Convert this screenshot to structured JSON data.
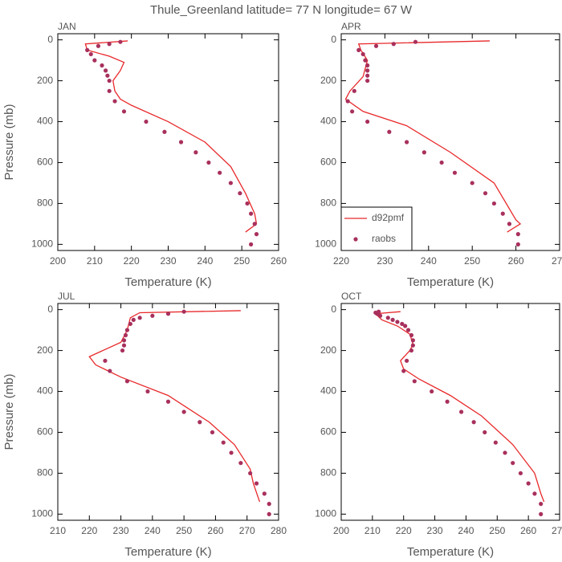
{
  "title": "Thule_Greenland  latitude= 77 N longitude= 67 W",
  "chart_data": [
    {
      "type": "line",
      "title": "JAN",
      "x_label": "Temperature (K)",
      "y_label": "Pressure (mb)",
      "xlim": [
        200,
        260
      ],
      "xticks": [
        200,
        210,
        220,
        230,
        240,
        250,
        260
      ],
      "ylim": [
        1030,
        -30
      ],
      "yticks": [
        0,
        200,
        400,
        600,
        800,
        1000
      ],
      "series": [
        {
          "name": "d92pmf",
          "style": "line",
          "color": "#e8282a",
          "x": [
            219,
            207.5,
            208,
            214,
            218,
            217,
            215,
            215.5,
            217,
            220,
            230,
            240,
            247,
            251,
            253.5,
            254,
            251
          ],
          "values": [
            5,
            20,
            50,
            80,
            110,
            150,
            200,
            250,
            290,
            320,
            400,
            500,
            620,
            750,
            850,
            900,
            940
          ]
        },
        {
          "name": "raobs",
          "style": "points",
          "color": "#a8305c",
          "x": [
            217,
            214,
            211,
            208,
            209,
            210,
            212,
            213,
            213.5,
            214,
            214,
            215.5,
            218,
            224,
            229,
            233.5,
            237.5,
            241,
            244,
            247,
            249.5,
            251.5,
            252.5,
            253.5,
            254,
            252.5
          ],
          "values": [
            10,
            20,
            30,
            50,
            70,
            100,
            125,
            150,
            175,
            200,
            250,
            300,
            350,
            400,
            450,
            500,
            550,
            600,
            650,
            700,
            750,
            800,
            850,
            900,
            950,
            1000
          ]
        }
      ]
    },
    {
      "type": "line",
      "title": "APR",
      "x_label": "Temperature (K)",
      "legend": "lower left",
      "xlim": [
        220,
        270
      ],
      "xticks": [
        220,
        230,
        240,
        250,
        260,
        270
      ],
      "ylim": [
        1030,
        -30
      ],
      "yticks": [
        0,
        200,
        400,
        600,
        800,
        1000
      ],
      "series": [
        {
          "name": "d92pmf",
          "style": "line",
          "color": "#e8282a",
          "x": [
            254,
            224,
            224.5,
            226,
            225,
            222,
            221,
            225,
            235,
            245,
            255,
            260,
            261,
            258
          ],
          "values": [
            5,
            20,
            50,
            100,
            180,
            250,
            290,
            350,
            420,
            550,
            700,
            880,
            900,
            940
          ]
        },
        {
          "name": "raobs",
          "style": "points",
          "color": "#a8305c",
          "x": [
            237,
            232,
            228,
            224,
            225,
            225.5,
            226,
            226,
            226,
            226,
            223,
            221.5,
            222.5,
            226,
            231,
            235,
            239,
            243,
            246,
            250,
            253,
            255,
            257,
            258.5,
            260.5,
            260.5
          ],
          "values": [
            10,
            20,
            30,
            50,
            70,
            100,
            125,
            150,
            175,
            200,
            250,
            300,
            350,
            400,
            450,
            500,
            550,
            600,
            650,
            700,
            750,
            800,
            850,
            900,
            950,
            1000
          ]
        }
      ]
    },
    {
      "type": "line",
      "title": "JUL",
      "x_label": "Temperature (K)",
      "y_label": "Pressure (mb)",
      "xlim": [
        210,
        280
      ],
      "xticks": [
        210,
        220,
        230,
        240,
        250,
        260,
        270,
        280
      ],
      "ylim": [
        1030,
        -30
      ],
      "yticks": [
        0,
        200,
        400,
        600,
        800,
        1000
      ],
      "series": [
        {
          "name": "d92pmf",
          "style": "line",
          "color": "#e8282a",
          "x": [
            268,
            236,
            233,
            232,
            230,
            225,
            220,
            222,
            230,
            245,
            258,
            266,
            271,
            272,
            274
          ],
          "values": [
            5,
            15,
            40,
            100,
            160,
            195,
            230,
            270,
            330,
            420,
            550,
            660,
            780,
            850,
            940
          ]
        },
        {
          "name": "raobs",
          "style": "points",
          "color": "#a8305c",
          "x": [
            250,
            245,
            240,
            236,
            234,
            233,
            232,
            231.5,
            231,
            231,
            230.5,
            225,
            226.5,
            232,
            238.5,
            245,
            250,
            255,
            259,
            262.5,
            265,
            268,
            271,
            273,
            275.5,
            277,
            277
          ],
          "values": [
            10,
            20,
            30,
            40,
            50,
            70,
            100,
            125,
            150,
            175,
            200,
            250,
            300,
            350,
            400,
            450,
            500,
            550,
            600,
            650,
            700,
            750,
            800,
            850,
            900,
            950,
            1000
          ]
        }
      ]
    },
    {
      "type": "line",
      "title": "OCT",
      "x_label": "Temperature (K)",
      "xlim": [
        200,
        270
      ],
      "xticks": [
        200,
        210,
        220,
        230,
        240,
        250,
        260,
        270
      ],
      "ylim": [
        1030,
        -30
      ],
      "yticks": [
        0,
        200,
        400,
        600,
        800,
        1000
      ],
      "series": [
        {
          "name": "d92pmf",
          "style": "line",
          "color": "#e8282a",
          "x": [
            219,
            211,
            213,
            218,
            222,
            223,
            222,
            219,
            220,
            225,
            235,
            245,
            255,
            262,
            264,
            265
          ],
          "values": [
            10,
            20,
            50,
            80,
            120,
            170,
            200,
            250,
            290,
            340,
            420,
            520,
            660,
            800,
            900,
            940
          ]
        },
        {
          "name": "raobs",
          "style": "points",
          "color": "#a8305c",
          "x": [
            212,
            211,
            211.5,
            212.5,
            215,
            216.5,
            218,
            219.5,
            220.5,
            221.5,
            222.5,
            223,
            223,
            222.5,
            221,
            220,
            223.5,
            229,
            234,
            238.5,
            242.5,
            246,
            249.5,
            252.5,
            255,
            257.5,
            260,
            262,
            264,
            264
          ],
          "values": [
            10,
            15,
            20,
            30,
            40,
            50,
            60,
            70,
            80,
            100,
            125,
            150,
            175,
            200,
            250,
            300,
            350,
            400,
            450,
            500,
            550,
            600,
            650,
            700,
            750,
            800,
            850,
            900,
            950,
            1000
          ]
        }
      ]
    }
  ]
}
